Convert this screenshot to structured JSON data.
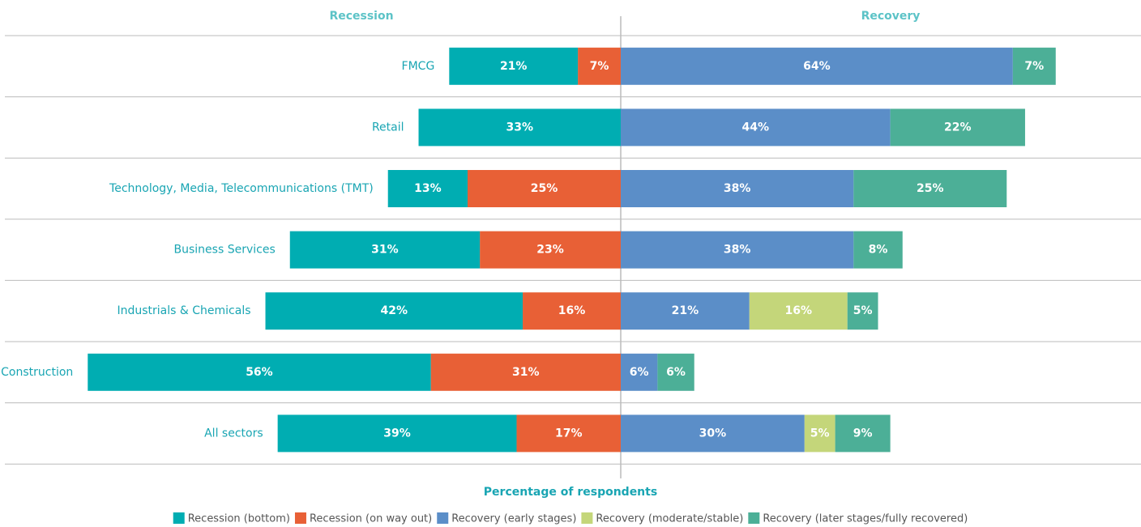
{
  "chart_data": {
    "type": "diverging-bar",
    "headers": [
      "Recession",
      "Recovery"
    ],
    "axis_label": "Percentage of respondents",
    "categories": [
      "FMCG",
      "Retail",
      "Technology, Media, Telecommunications (TMT)",
      "Business Services",
      "Industrials & Chemicals",
      "Construction",
      "All sectors"
    ],
    "series": [
      {
        "name": "Recession (bottom)",
        "color": "#00adb2",
        "side": "left",
        "values": [
          21,
          33,
          13,
          31,
          42,
          56,
          39
        ],
        "value_labels": [
          "21%",
          "33%",
          "13%",
          "31%",
          "42%",
          "56%",
          "39%"
        ]
      },
      {
        "name": "Recession (on way out)",
        "color": "#e86036",
        "side": "left",
        "values": [
          7,
          null,
          25,
          23,
          16,
          31,
          17
        ],
        "value_labels": [
          "7%",
          null,
          "25%",
          "23%",
          "16%",
          "31%",
          "17%"
        ]
      },
      {
        "name": "Recovery (early stages)",
        "color": "#5b8ec8",
        "side": "right",
        "values": [
          64,
          44,
          38,
          38,
          21,
          6,
          30
        ],
        "value_labels": [
          "64%",
          "44%",
          "38%",
          "38%",
          "21%",
          "6%",
          "30%"
        ]
      },
      {
        "name": "Recovery (moderate/stable)",
        "color": "#c4d67a",
        "side": "right",
        "values": [
          null,
          null,
          null,
          null,
          16,
          null,
          5
        ],
        "value_labels": [
          null,
          null,
          null,
          null,
          "16%",
          null,
          "5%"
        ]
      },
      {
        "name": "Recovery (later stages/fully recovered)",
        "color": "#4caf97",
        "side": "right",
        "values": [
          7,
          22,
          25,
          8,
          5,
          6,
          9
        ],
        "value_labels": [
          "7%",
          "22%",
          "25%",
          "8%",
          "5%",
          "6%",
          "9%"
        ]
      }
    ]
  }
}
